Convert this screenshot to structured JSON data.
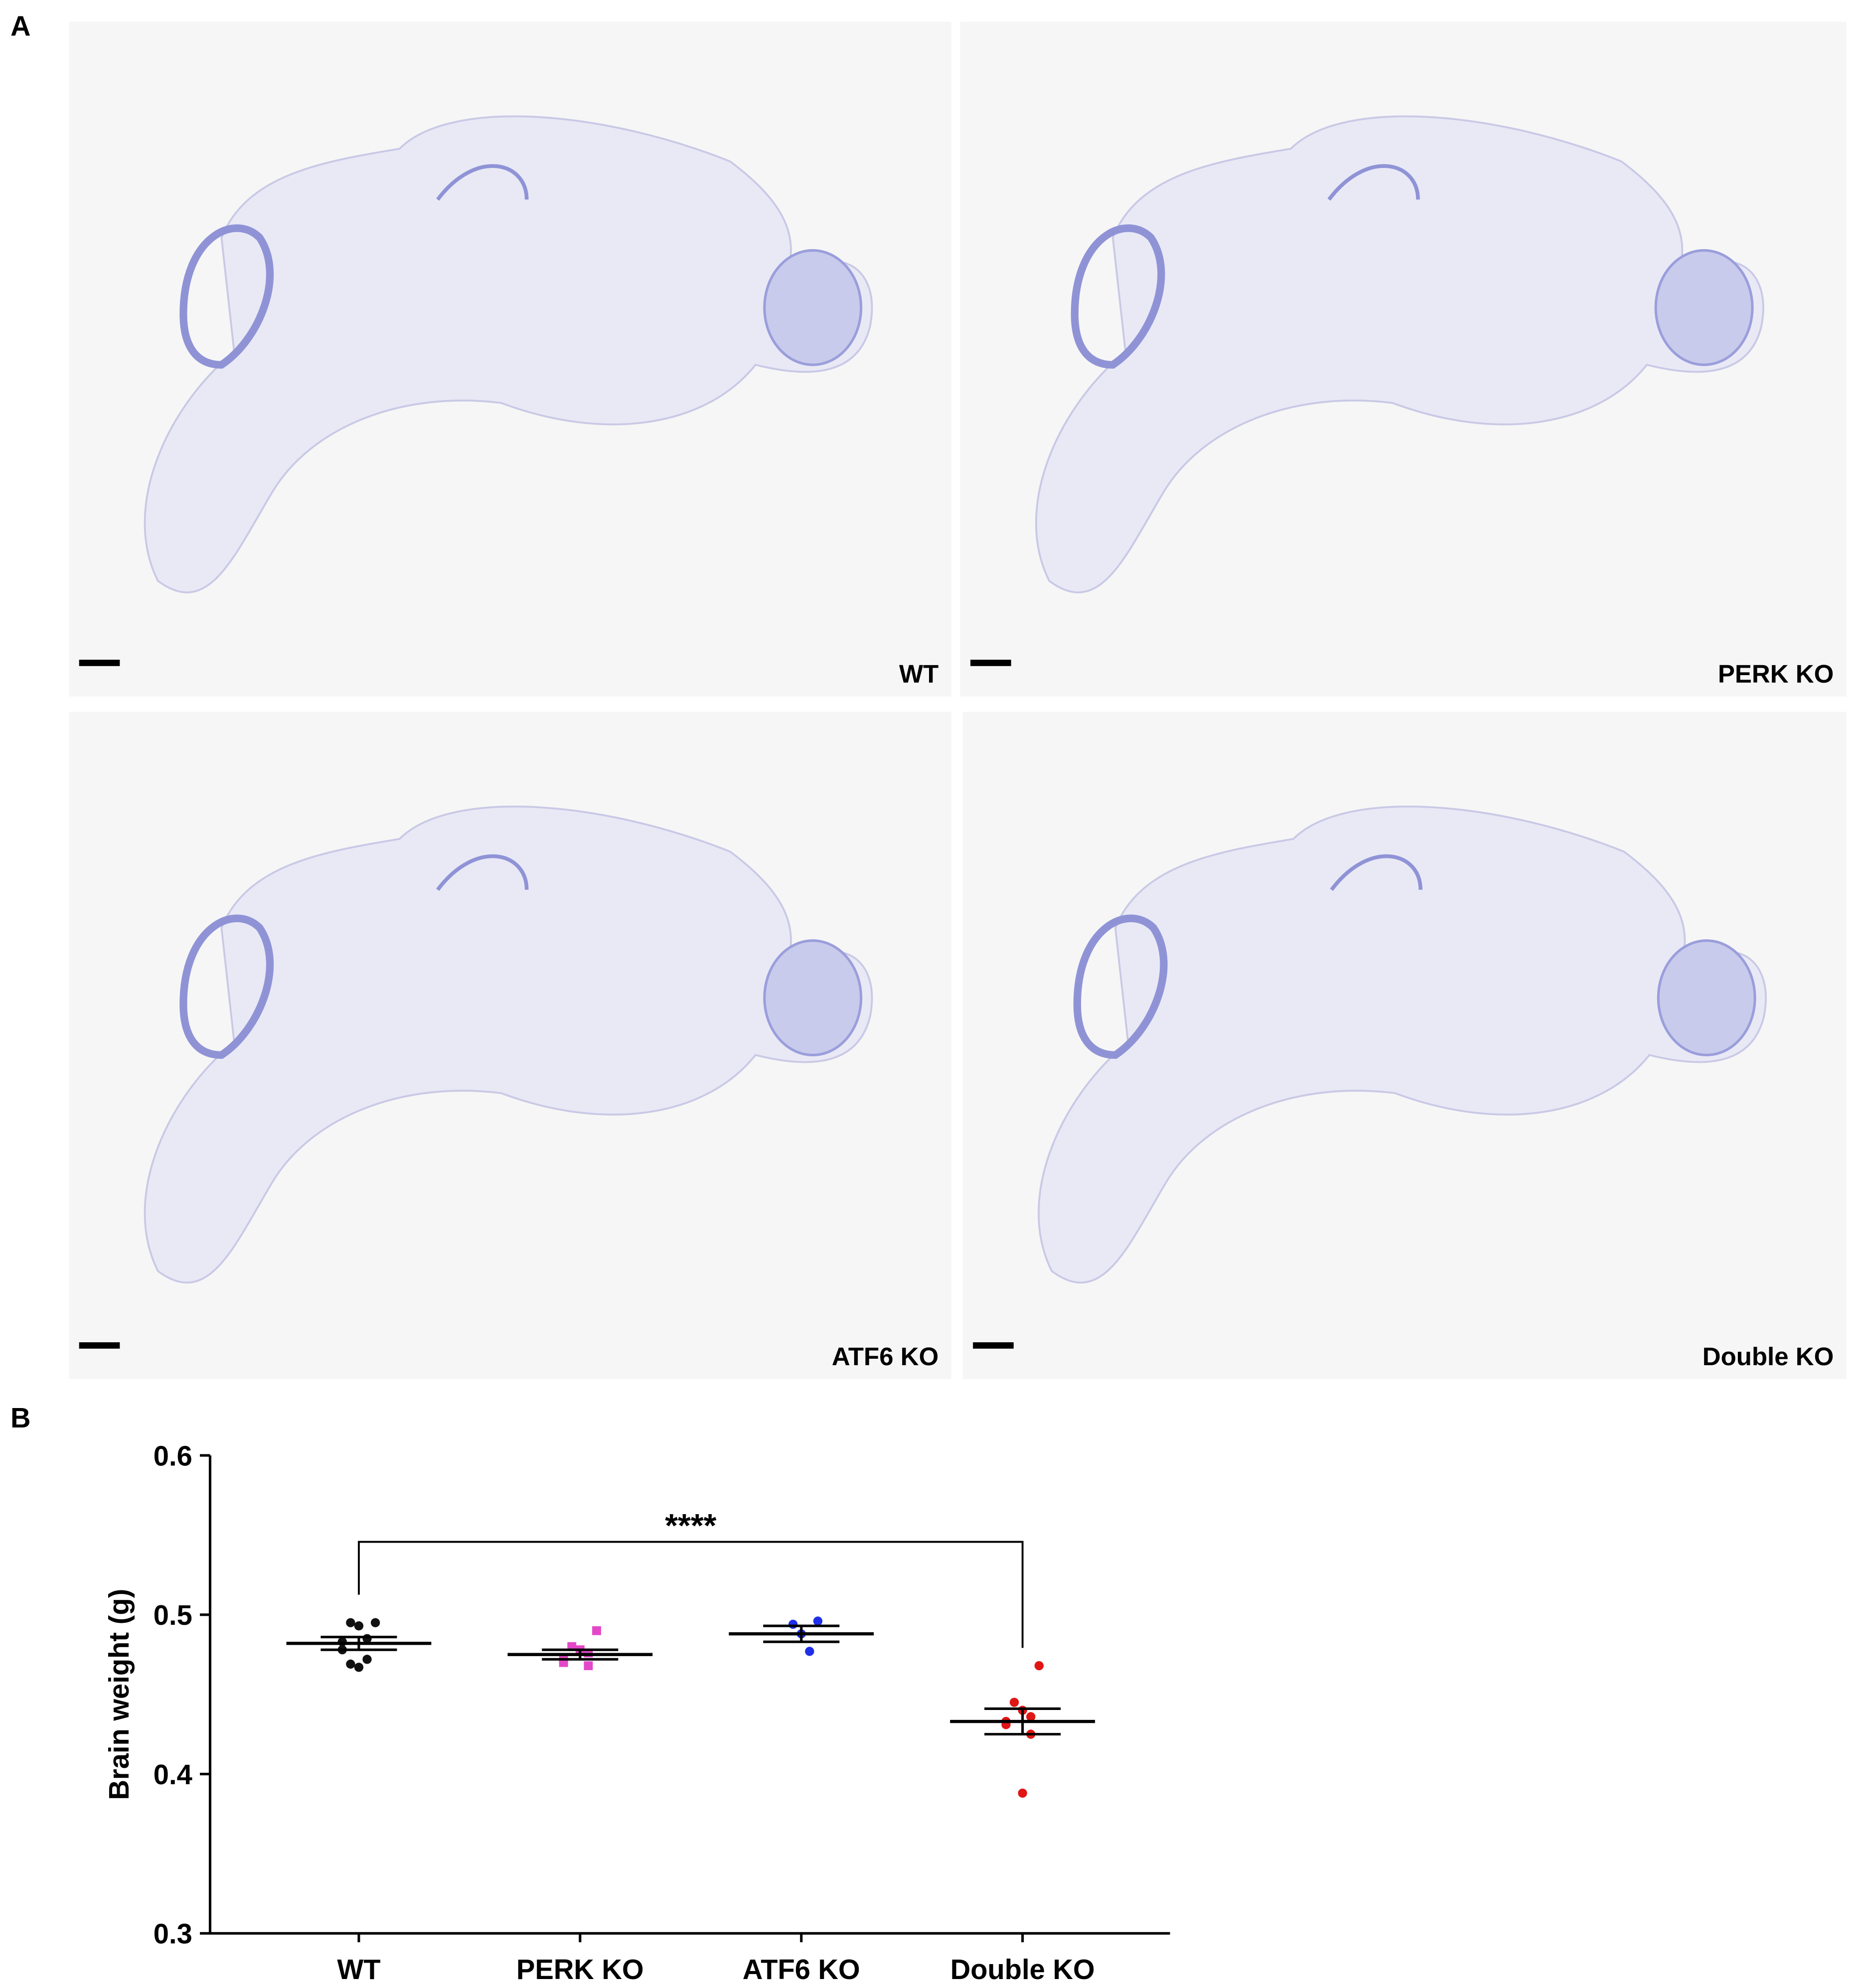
{
  "panels": {
    "a": "A",
    "b": "B"
  },
  "images": [
    "WT",
    "PERK KO",
    "ATF6 KO",
    "Double KO"
  ],
  "chart_data": {
    "type": "dot",
    "y_label": "Brain weight (g)",
    "categories": [
      "WT",
      "PERK KO",
      "ATF6 KO",
      "Double KO"
    ],
    "colors": [
      "#111111",
      "#e448c8",
      "#1f2fe8",
      "#e01515"
    ],
    "values": [
      [
        0.495,
        0.495,
        0.493,
        0.485,
        0.483,
        0.478,
        0.472,
        0.467,
        0.469
      ],
      [
        0.49,
        0.48,
        0.478,
        0.476,
        0.472,
        0.47,
        0.468
      ],
      [
        0.496,
        0.494,
        0.488,
        0.477
      ],
      [
        0.468,
        0.445,
        0.44,
        0.436,
        0.433,
        0.431,
        0.425,
        0.388
      ]
    ],
    "means": [
      0.482,
      0.475,
      0.488,
      0.433
    ],
    "sems": [
      0.004,
      0.003,
      0.005,
      0.008
    ],
    "ylim": [
      0.3,
      0.6
    ],
    "yticks": [
      0.3,
      0.4,
      0.5,
      0.6
    ],
    "significance": {
      "label": "****",
      "from": 0,
      "to": 3
    }
  }
}
